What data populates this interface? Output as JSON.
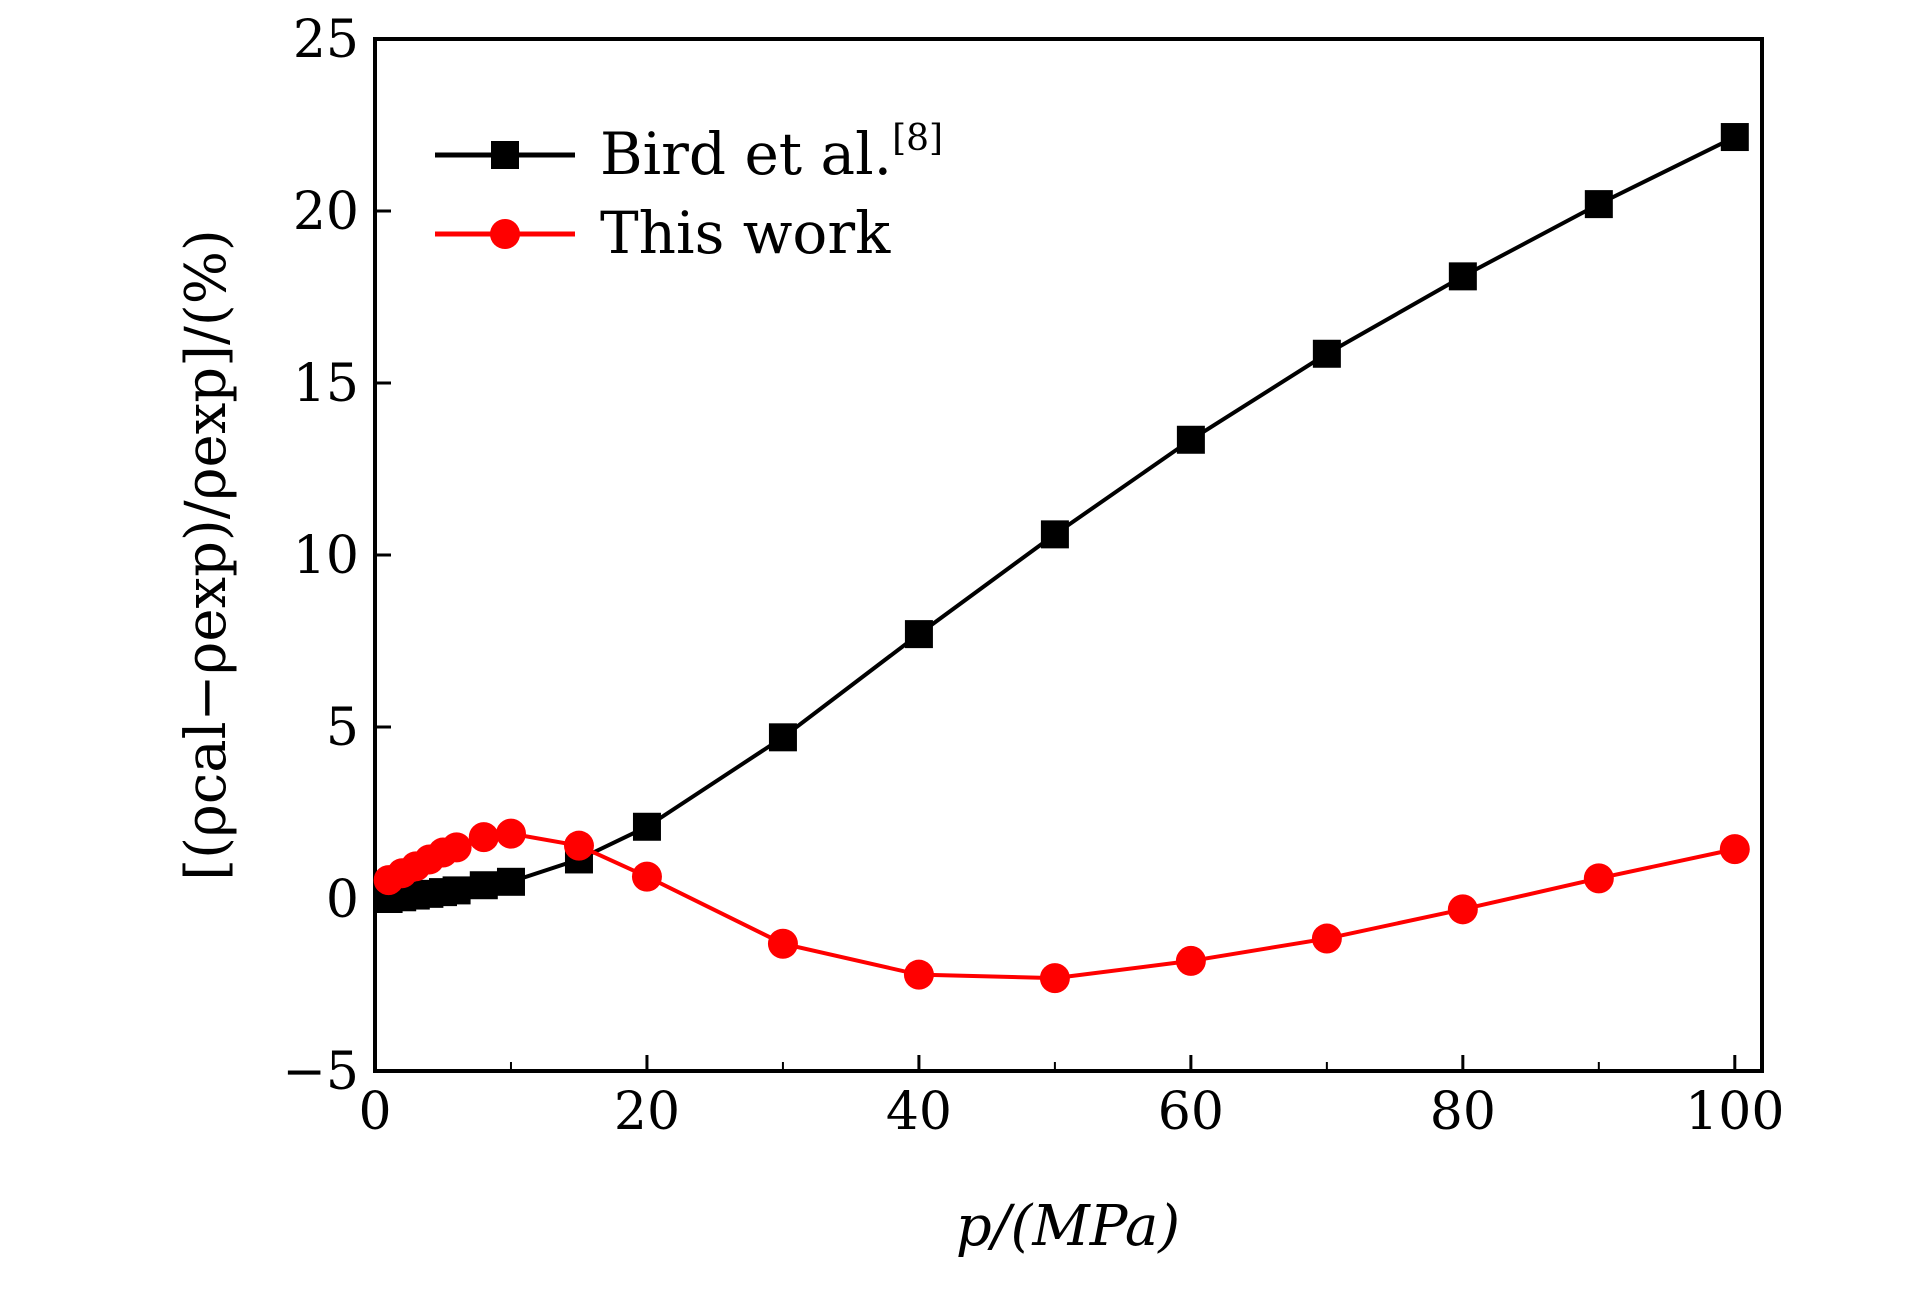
{
  "chart_data": {
    "type": "line",
    "title": "",
    "xlabel": "p/(MPa)",
    "ylabel": "[(ρcal−ρexp)/ρexp]/(%)",
    "xlim": [
      0,
      102
    ],
    "ylim": [
      -5,
      25
    ],
    "xticks": [
      0,
      20,
      40,
      60,
      80,
      100
    ],
    "yticks": [
      -5,
      0,
      5,
      10,
      15,
      20,
      25
    ],
    "xtick_labels": [
      "0",
      "20",
      "40",
      "60",
      "80",
      "100"
    ],
    "ytick_labels": [
      "−5",
      "0",
      "5",
      "10",
      "15",
      "20",
      "25"
    ],
    "legend_position": "top-left",
    "series": [
      {
        "name": "Bird et al.",
        "name_superscript": "[8]",
        "color": "#000000",
        "marker": "square",
        "x": [
          1,
          2,
          3,
          4,
          5,
          6,
          8,
          10,
          15,
          20,
          30,
          40,
          50,
          60,
          70,
          80,
          90,
          100
        ],
        "y": [
          0.0,
          0.05,
          0.1,
          0.15,
          0.2,
          0.25,
          0.4,
          0.5,
          1.15,
          2.1,
          4.7,
          7.7,
          10.6,
          13.35,
          15.85,
          18.1,
          20.2,
          22.15
        ]
      },
      {
        "name": "This work",
        "color": "#ff0000",
        "marker": "circle",
        "x": [
          1,
          2,
          3,
          4,
          5,
          6,
          8,
          10,
          15,
          20,
          30,
          40,
          50,
          60,
          70,
          80,
          90,
          100
        ],
        "y": [
          0.55,
          0.75,
          0.95,
          1.15,
          1.35,
          1.5,
          1.8,
          1.9,
          1.55,
          0.65,
          -1.3,
          -2.2,
          -2.3,
          -1.8,
          -1.15,
          -0.3,
          0.6,
          1.45
        ]
      }
    ]
  }
}
